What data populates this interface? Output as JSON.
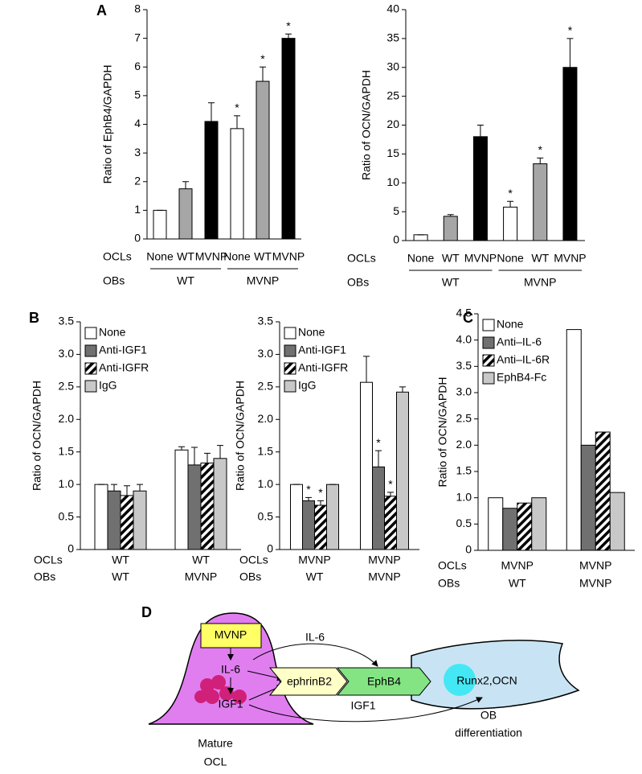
{
  "panel_labels": [
    "A",
    "B",
    "C",
    "D"
  ],
  "chart_data": [
    {
      "type": "bar",
      "ylabel": "Ratio of EphB4/GAPDH",
      "ylim": [
        0,
        8
      ],
      "yticks": [
        0,
        1,
        2,
        3,
        4,
        5,
        6,
        7,
        8
      ],
      "row_labels": [
        "OCLs",
        "OBs"
      ],
      "categories": [
        "None",
        "WT",
        "MVNP",
        "None",
        "WT",
        "MVNP"
      ],
      "groups": [
        "WT",
        "MVNP"
      ],
      "values": [
        1,
        1.75,
        4.1,
        3.85,
        5.5,
        7.0
      ],
      "errors": [
        0,
        0.25,
        0.65,
        0.45,
        0.5,
        0.15
      ],
      "stars": [
        null,
        null,
        null,
        "*",
        "*",
        "*"
      ],
      "colors": [
        "#ffffff",
        "#a6a6a6",
        "#000000",
        "#ffffff",
        "#a6a6a6",
        "#000000"
      ]
    },
    {
      "type": "bar",
      "ylabel": "Ratio of OCN/GAPDH",
      "ylim": [
        0,
        40
      ],
      "yticks": [
        0,
        5,
        10,
        15,
        20,
        25,
        30,
        35,
        40
      ],
      "row_labels": [
        "OCLs",
        "OBs"
      ],
      "categories": [
        "None",
        "WT",
        "MVNP",
        "None",
        "WT",
        "MVNP"
      ],
      "groups": [
        "WT",
        "MVNP"
      ],
      "values": [
        1,
        4.2,
        18,
        5.8,
        13.3,
        30
      ],
      "errors": [
        0,
        0.3,
        2,
        1,
        1,
        5
      ],
      "stars": [
        null,
        null,
        null,
        "*",
        "*",
        "*"
      ],
      "colors": [
        "#ffffff",
        "#a6a6a6",
        "#000000",
        "#ffffff",
        "#a6a6a6",
        "#000000"
      ]
    },
    {
      "type": "grouped_bar",
      "ylabel": "Ratio of OCN/GAPDH",
      "ylim": [
        0,
        3.5
      ],
      "yticks": [
        0,
        0.5,
        {
          "value": 1,
          "label": "1.0"
        },
        1.5,
        {
          "value": 2,
          "label": "2.0"
        },
        2.5,
        {
          "value": 3,
          "label": "3.0"
        },
        3.5
      ],
      "row_labels": [
        "OCLs",
        "OBs"
      ],
      "categories": [
        "WT",
        "WT"
      ],
      "groups": [
        "WT",
        "MVNP"
      ],
      "legend": "top-left",
      "series": [
        {
          "name": "None",
          "color": "#ffffff",
          "values": [
            1,
            1.53
          ],
          "errors": [
            0,
            0.05
          ]
        },
        {
          "name": "Anti-IGF1",
          "color": "#707070",
          "values": [
            0.9,
            1.3
          ],
          "errors": [
            0.1,
            0.27
          ]
        },
        {
          "name": "Anti-IGFR",
          "color": "#000000",
          "hatch": true,
          "values": [
            0.83,
            1.33
          ],
          "errors": [
            0.15,
            0.15
          ]
        },
        {
          "name": "IgG",
          "color": "#c8c8c8",
          "values": [
            0.9,
            1.4
          ],
          "errors": [
            0.1,
            0.2
          ]
        }
      ]
    },
    {
      "type": "grouped_bar",
      "ylabel": "Ratio of OCN/GAPDH",
      "ylim": [
        0,
        3.5
      ],
      "yticks": [
        0,
        0.5,
        {
          "value": 1,
          "label": "1.0"
        },
        1.5,
        {
          "value": 2,
          "label": "2.0"
        },
        2.5,
        {
          "value": 3,
          "label": "3.0"
        },
        3.5
      ],
      "row_labels": [
        "OCLs",
        "OBs"
      ],
      "categories": [
        "MVNP",
        "MVNP"
      ],
      "groups": [
        "WT",
        "MVNP"
      ],
      "legend": "top-left",
      "series": [
        {
          "name": "None",
          "color": "#ffffff",
          "values": [
            1,
            2.57
          ],
          "errors": [
            0,
            0.4
          ]
        },
        {
          "name": "Anti-IGF1",
          "color": "#707070",
          "values": [
            0.75,
            1.27
          ],
          "errors": [
            0.05,
            0.25
          ],
          "stars": [
            "*",
            "*"
          ]
        },
        {
          "name": "Anti-IGFR",
          "color": "#000000",
          "hatch": true,
          "values": [
            0.68,
            0.82
          ],
          "errors": [
            0.07,
            0.06
          ],
          "stars": [
            "*",
            "*"
          ]
        },
        {
          "name": "IgG",
          "color": "#c8c8c8",
          "values": [
            1,
            2.42
          ],
          "errors": [
            0,
            0.08
          ]
        }
      ]
    },
    {
      "type": "grouped_bar",
      "ylabel": "Ratio of OCN/GAPDH",
      "ylim": [
        0,
        4.5
      ],
      "yticks": [
        0,
        0.5,
        {
          "value": 1,
          "label": "1.0"
        },
        1.5,
        {
          "value": 2,
          "label": "2.0"
        },
        2.5,
        {
          "value": 3,
          "label": "3.0"
        },
        3.5,
        {
          "value": 4,
          "label": "4.0"
        },
        4.5
      ],
      "row_labels": [
        "OCLs",
        "OBs"
      ],
      "categories": [
        "MVNP",
        "MVNP"
      ],
      "groups": [
        "WT",
        "MVNP"
      ],
      "legend": "top-left",
      "series": [
        {
          "name": "None",
          "color": "#ffffff",
          "values": [
            1,
            4.2
          ]
        },
        {
          "name": "Anti–IL-6",
          "color": "#707070",
          "values": [
            0.8,
            2.0
          ]
        },
        {
          "name": "Anti–IL-6R",
          "color": "#000000",
          "hatch": true,
          "values": [
            0.9,
            2.25
          ]
        },
        {
          "name": "EphB4-Fc",
          "color": "#c8c8c8",
          "values": [
            1,
            1.1
          ]
        }
      ]
    }
  ],
  "diagram": {
    "mvnp": "MVNP",
    "il6_inner": "IL-6",
    "igf1_inner": "IGF1",
    "il6_arrow": "IL-6",
    "igf1_arrow": "IGF1",
    "ephrinb2": "ephrinB2",
    "ephb4": "EphB4",
    "runx2": "Runx2,OCN",
    "ocl": [
      "Mature",
      "OCL"
    ],
    "ob": [
      "OB",
      "differentiation"
    ]
  }
}
